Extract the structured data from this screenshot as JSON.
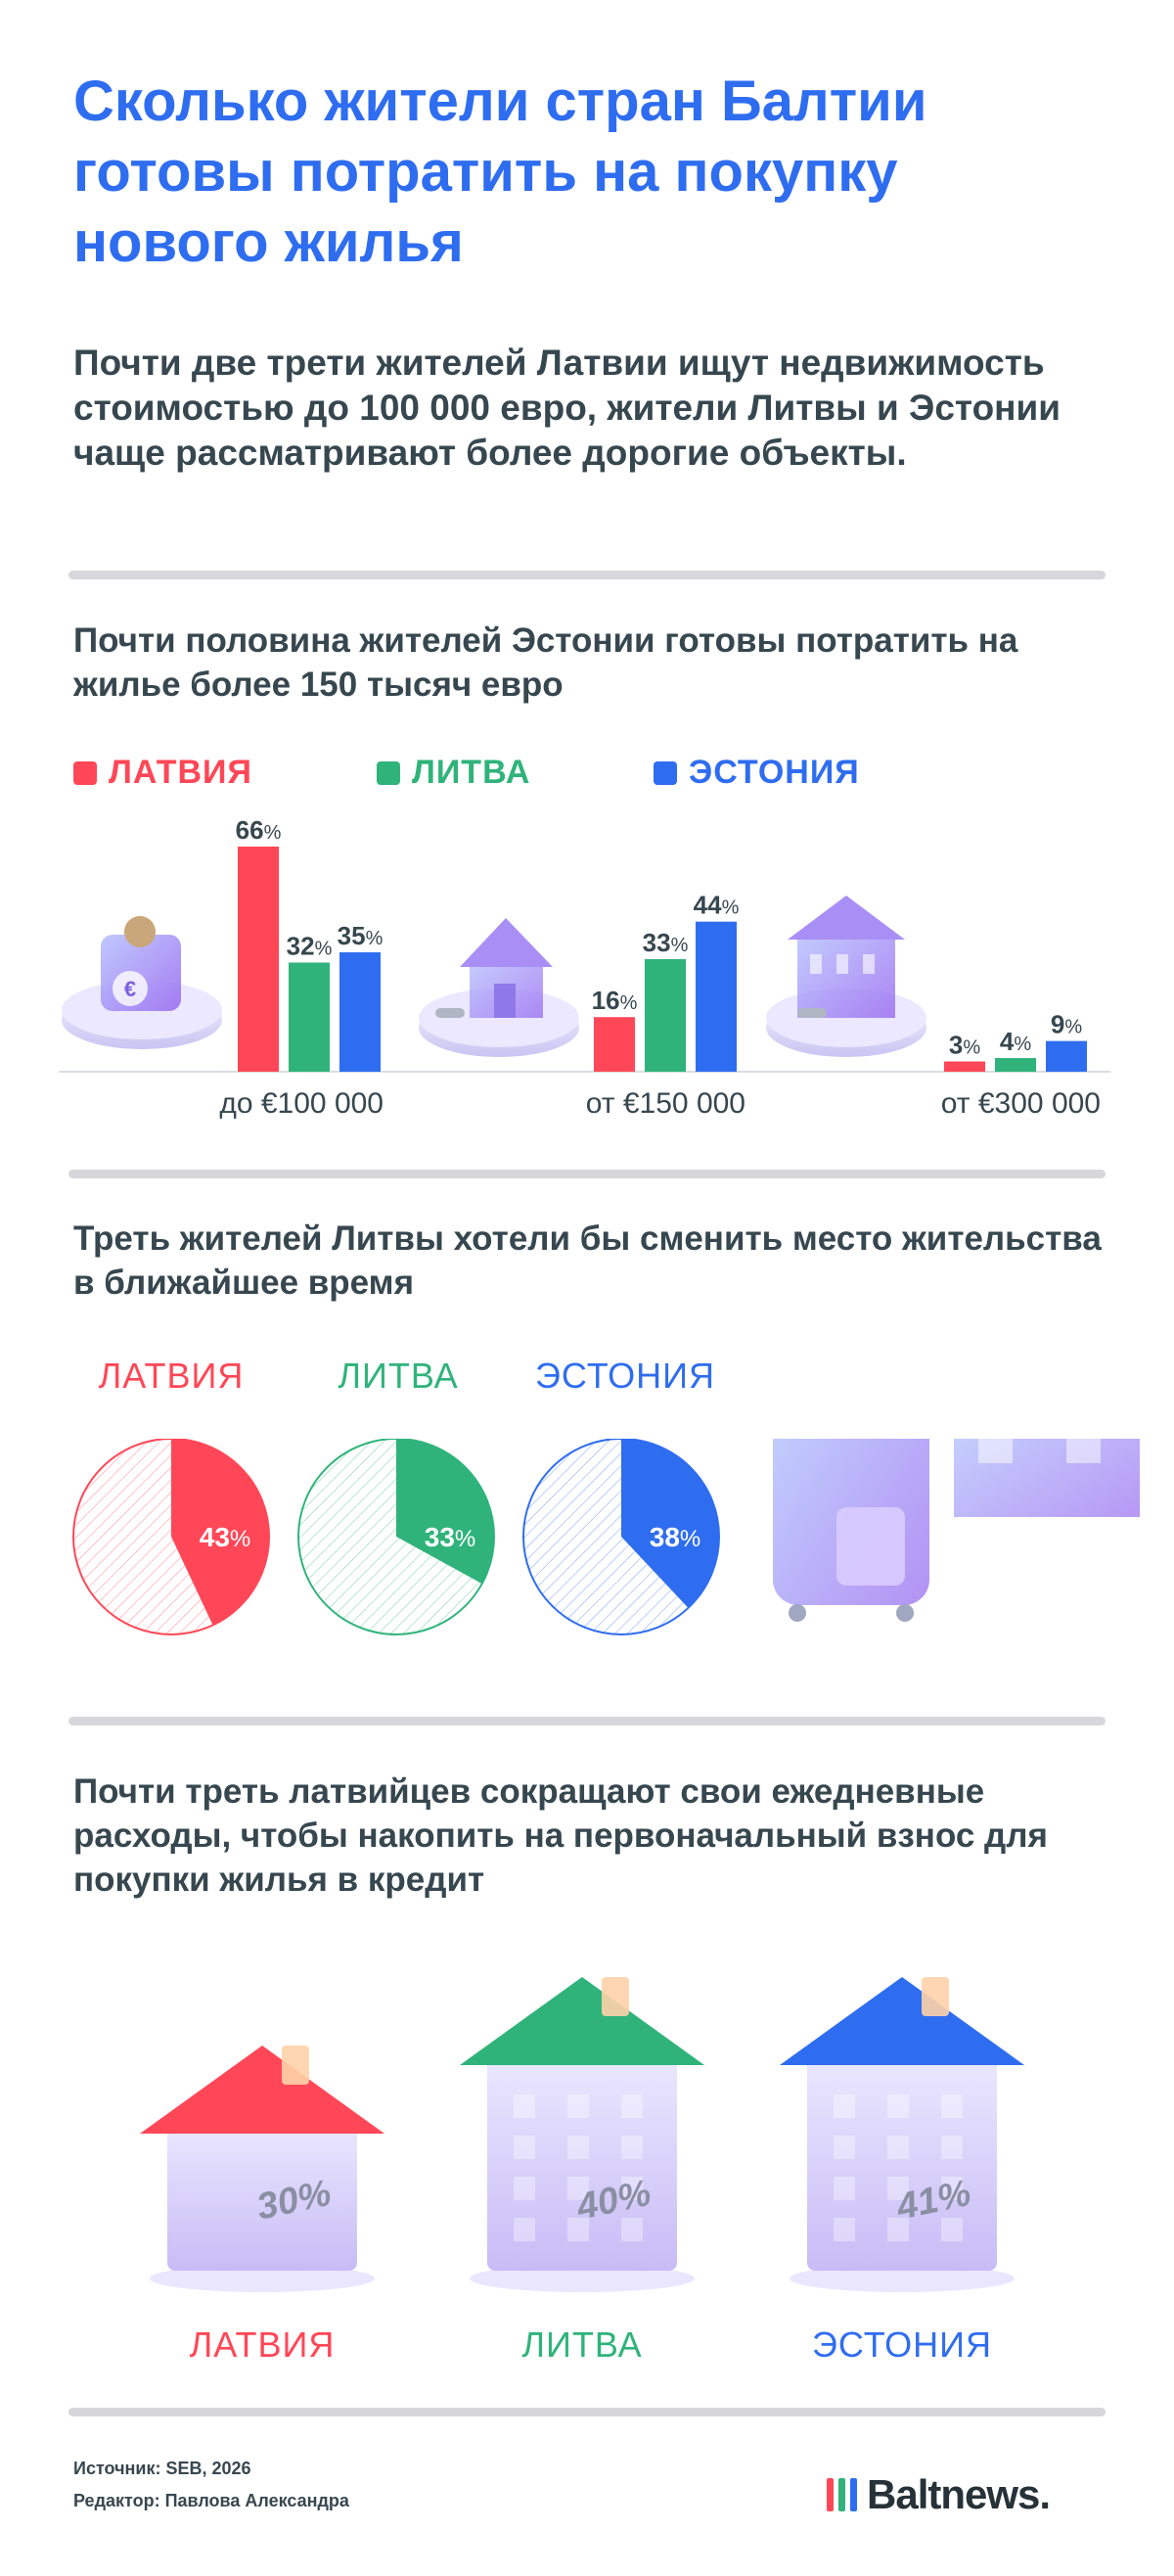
{
  "title": "Сколько жители стран Балтии готовы потратить на покупку нового жилья",
  "intro": "Почти две трети жителей Латвии ищут недвижимость стоимостью до 100 000 евро, жители Литвы и Эстонии чаще рассматривают более дорогие объекты.",
  "colors": {
    "latvia": "#ff4757",
    "lithuania": "#2fb37a",
    "estonia": "#2f6df0",
    "title": "#2f6df0"
  },
  "section1": {
    "title": "Почти половина жителей Эстонии готовы потратить на жилье более 150 тысяч евро",
    "legend": [
      "ЛАТВИЯ",
      "ЛИТВА",
      "ЭСТОНИЯ"
    ]
  },
  "section2": {
    "title": "Треть жителей Литвы хотели бы сменить место жительства в ближайшее время",
    "labels": [
      "ЛАТВИЯ",
      "ЛИТВА",
      "ЭСТОНИЯ"
    ]
  },
  "section3": {
    "title": "Почти треть латвийцев сокращают свои ежедневные расходы, чтобы накопить на первоначальный взнос для покупки жилья в кредит",
    "labels": [
      "ЛАТВИЯ",
      "ЛИТВА",
      "ЭСТОНИЯ"
    ]
  },
  "chart_data": [
    {
      "type": "bar",
      "title": "Почти половина жителей Эстонии готовы потратить на жилье более 150 тысяч евро",
      "categories": [
        "до €100 000",
        "от €150 000",
        "от €300 000"
      ],
      "unit": "%",
      "series": [
        {
          "name": "ЛАТВИЯ",
          "color": "#ff4757",
          "values": [
            66,
            16,
            3
          ]
        },
        {
          "name": "ЛИТВА",
          "color": "#2fb37a",
          "values": [
            32,
            33,
            4
          ]
        },
        {
          "name": "ЭСТОНИЯ",
          "color": "#2f6df0",
          "values": [
            35,
            44,
            9
          ]
        }
      ],
      "ylim": [
        0,
        66
      ]
    },
    {
      "type": "pie",
      "title": "Треть жителей Литвы хотели бы сменить место жительства в ближайшее время",
      "categories": [
        "ЛАТВИЯ",
        "ЛИТВА",
        "ЭСТОНИЯ"
      ],
      "values": [
        43,
        33,
        38
      ],
      "unit": "%",
      "colors": [
        "#ff4757",
        "#2fb37a",
        "#2f6df0"
      ]
    },
    {
      "type": "table",
      "title": "Почти треть латвийцев сокращают свои ежедневные расходы, чтобы накопить на первоначальный взнос для покупки жилья в кредит",
      "categories": [
        "ЛАТВИЯ",
        "ЛИТВА",
        "ЭСТОНИЯ"
      ],
      "values": [
        30,
        40,
        41
      ],
      "unit": "%",
      "colors": [
        "#ff4757",
        "#2fb37a",
        "#2f6df0"
      ]
    }
  ],
  "footer": {
    "source": "Источник: SEB, 2026",
    "editor": "Редактор: Павлова Александра",
    "logo": "Baltnews."
  }
}
